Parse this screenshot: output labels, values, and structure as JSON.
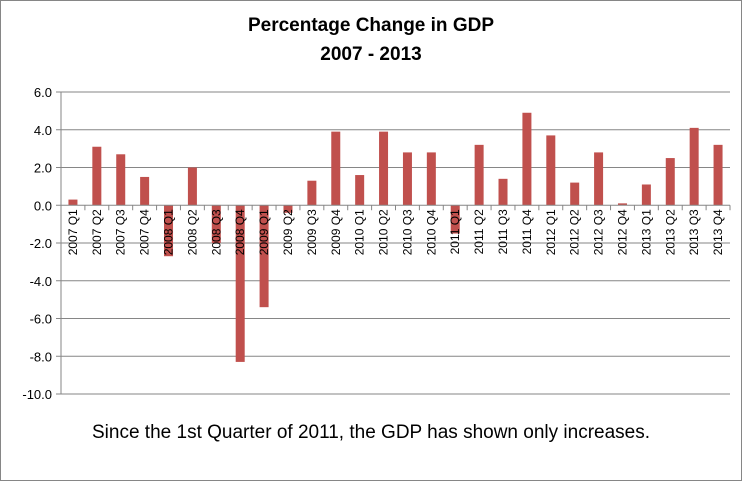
{
  "chart_data": {
    "type": "bar",
    "title": "Percentage Change in GDP",
    "subtitle": "2007 - 2013",
    "xlabel": "",
    "ylabel": "",
    "ylim": [
      -10,
      6
    ],
    "yticks": [
      "6.0",
      "4.0",
      "2.0",
      "0.0",
      "-2.0",
      "-4.0",
      "-6.0",
      "-8.0",
      "-10.0"
    ],
    "ytick_values": [
      6,
      4,
      2,
      0,
      -2,
      -4,
      -6,
      -8,
      -10
    ],
    "grid": true,
    "categories": [
      "2007 Q1",
      "2007 Q2",
      "2007 Q3",
      "2007 Q4",
      "2008 Q1",
      "2008 Q2",
      "2008 Q3",
      "2008 Q4",
      "2009 Q1",
      "2009 Q2",
      "2009 Q3",
      "2009 Q4",
      "2010 Q1",
      "2010 Q2",
      "2010 Q3",
      "2010 Q4",
      "2011 Q1",
      "2011 Q2",
      "2011 Q3",
      "2011 Q4",
      "2012 Q1",
      "2012 Q2",
      "2012 Q3",
      "2012 Q4",
      "2013 Q1",
      "2013 Q2",
      "2013 Q3",
      "2013 Q4"
    ],
    "values": [
      0.3,
      3.1,
      2.7,
      1.5,
      -2.7,
      2.0,
      -2.0,
      -8.3,
      -5.4,
      -0.4,
      1.3,
      3.9,
      1.6,
      3.9,
      2.8,
      2.8,
      -1.5,
      3.2,
      1.4,
      4.9,
      3.7,
      1.2,
      2.8,
      0.1,
      1.1,
      2.5,
      4.1,
      3.2
    ],
    "colors": {
      "bar": "#c0504d",
      "grid": "#868686",
      "axis": "#868686"
    }
  },
  "caption": "Since the 1st Quarter of 2011, the GDP has shown only increases."
}
